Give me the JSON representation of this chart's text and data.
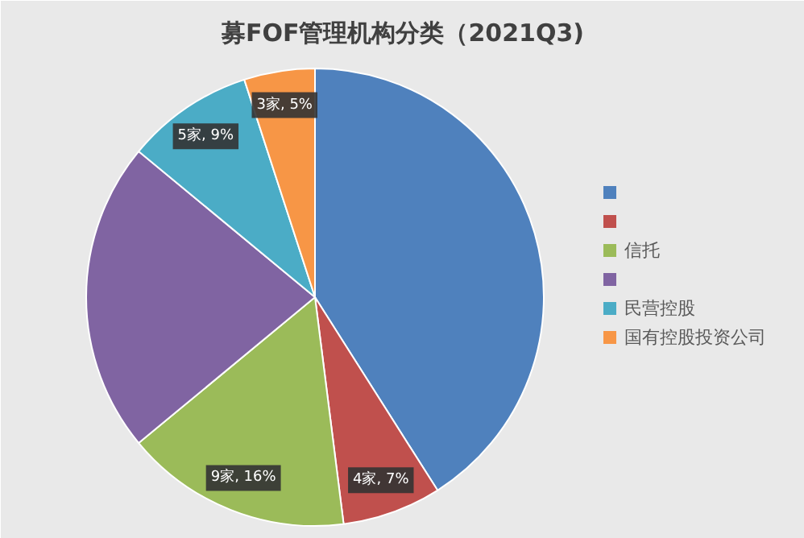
{
  "chart_data": {
    "type": "pie",
    "title": "募FOF管理机构分类（2021Q3)",
    "categories": [
      null,
      null,
      "信托",
      null,
      "民营控股",
      "国有控股投资公司"
    ],
    "values": [
      41,
      7,
      16,
      22,
      9,
      5
    ],
    "colors": [
      "#4f81bd",
      "#c0504d",
      "#9bbb59",
      "#8064a2",
      "#4bacc6",
      "#f79646"
    ],
    "value_labels": [
      null,
      "4家, 7%",
      "9家, 16%",
      null,
      "5家, 9%",
      "3家, 5%"
    ],
    "legend": "right"
  }
}
